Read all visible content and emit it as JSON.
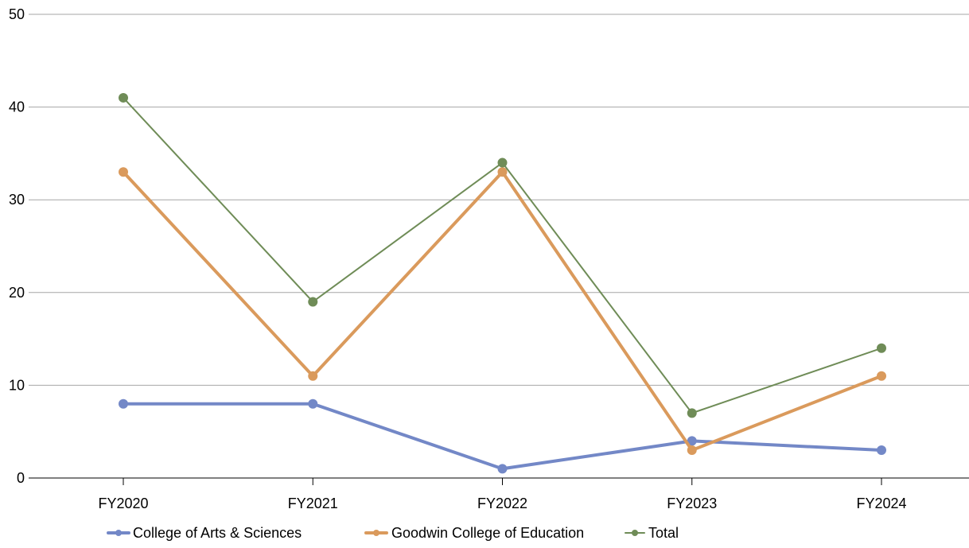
{
  "chart_data": {
    "type": "line",
    "title": "",
    "xlabel": "",
    "ylabel": "",
    "categories": [
      "FY2020",
      "FY2021",
      "FY2022",
      "FY2023",
      "FY2024"
    ],
    "ylim": [
      0,
      50
    ],
    "yticks": [
      0,
      10,
      20,
      30,
      40,
      50
    ],
    "grid": true,
    "legend_position": "bottom",
    "series": [
      {
        "name": "College of Arts & Sciences",
        "values": [
          8,
          8,
          1,
          4,
          3
        ],
        "color": "#7388c7",
        "weight": "thick"
      },
      {
        "name": "Goodwin College of Education",
        "values": [
          33,
          11,
          33,
          3,
          11
        ],
        "color": "#da9a5c",
        "weight": "thick"
      },
      {
        "name": "Total",
        "values": [
          41,
          19,
          34,
          7,
          14
        ],
        "color": "#6f8c57",
        "weight": "thin"
      }
    ]
  }
}
